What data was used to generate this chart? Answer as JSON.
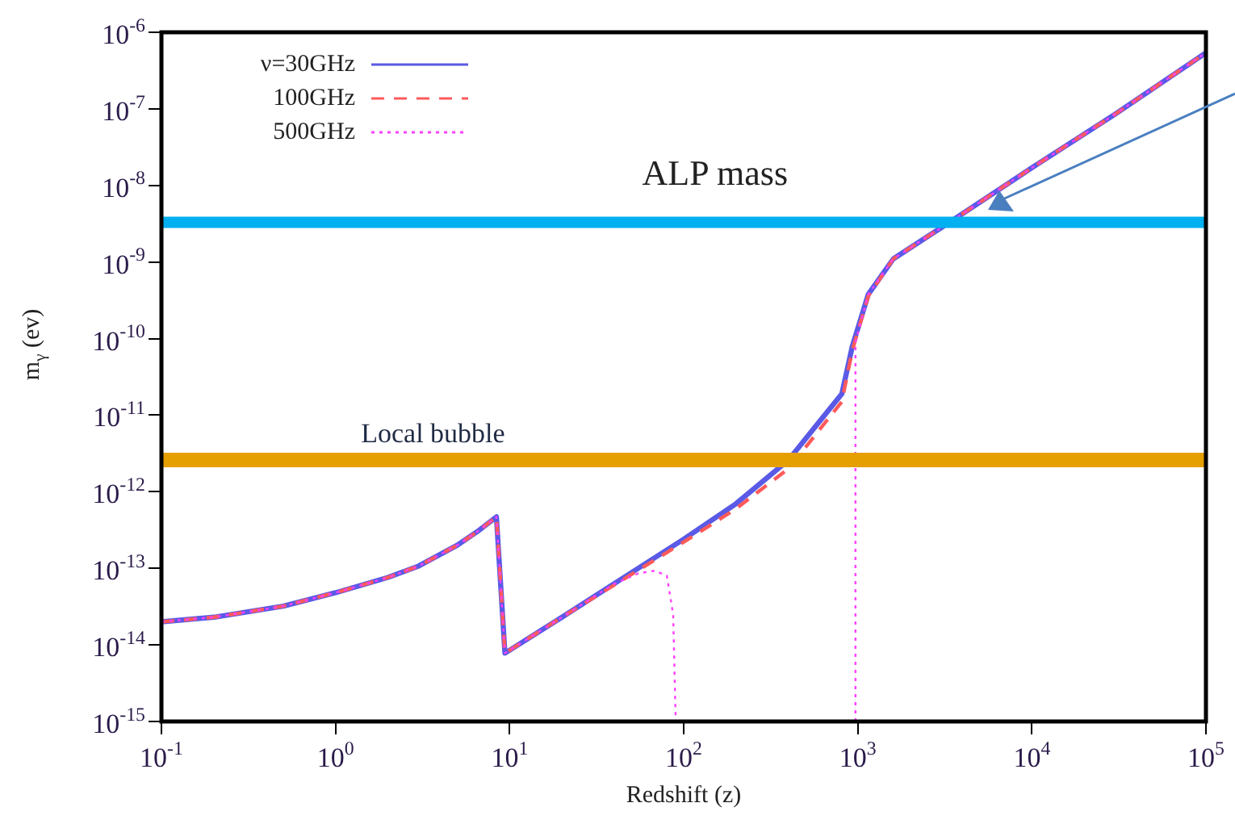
{
  "chart_data": {
    "type": "line",
    "xlabel": "Redshift (z)",
    "ylabel": "m$_{γ}$ (ev)",
    "log": "xy",
    "grid": false,
    "legend": "top left",
    "marker": "none",
    "xlim": [
      0.1,
      100000
    ],
    "ylim": [
      1e-15,
      1e-06
    ],
    "xticks": [
      {
        "value": 0.1,
        "label": "10$^{-1}$"
      },
      {
        "value": 1,
        "label": "10$^{0}$"
      },
      {
        "value": 10,
        "label": "10$^{1}$"
      },
      {
        "value": 100,
        "label": "10$^{2}$"
      },
      {
        "value": 1000,
        "label": "10$^{3}$"
      },
      {
        "value": 10000,
        "label": "10$^{4}$"
      },
      {
        "value": 100000,
        "label": "10$^{5}$"
      }
    ],
    "yticks": [
      {
        "value": 1e-15,
        "label": "10$^{-15}$"
      },
      {
        "value": 1e-14,
        "label": "10$^{-14}$"
      },
      {
        "value": 1e-13,
        "label": "10$^{-13}$"
      },
      {
        "value": 1e-12,
        "label": "10$^{-12}$"
      },
      {
        "value": 1e-11,
        "label": "10$^{-11}$"
      },
      {
        "value": 1e-10,
        "label": "10$^{-10}$"
      },
      {
        "value": 1e-09,
        "label": "10$^{-9}$"
      },
      {
        "value": 1e-08,
        "label": "10$^{-8}$"
      },
      {
        "value": 1e-07,
        "label": "10$^{-7}$"
      },
      {
        "value": 1e-06,
        "label": "10$^{-6}$"
      }
    ],
    "series": [
      {
        "name": "ν=30GHz",
        "color": "#5a5ae6",
        "line_style": "solid",
        "x": [
          0.1,
          0.2,
          0.5,
          1,
          2,
          3,
          5,
          6.5,
          8.4,
          9.4,
          20,
          42,
          100,
          200,
          400,
          810,
          930,
          1150,
          1600,
          3500,
          10000,
          30000,
          100000
        ],
        "values": [
          2e-14,
          2.3e-14,
          3.2e-14,
          4.8e-14,
          7.6e-14,
          1.07e-13,
          2e-13,
          3e-13,
          4.7e-13,
          7.8e-15,
          2.3e-14,
          6.8e-14,
          2.4e-13,
          7e-13,
          2.6e-12,
          1.9e-11,
          7.9e-11,
          3.8e-10,
          1.1e-09,
          3.5e-09,
          1.7e-08,
          8.5e-08,
          5.4e-07
        ]
      },
      {
        "name": "100GHz",
        "color": "#ff5a5a",
        "line_style": "dashed",
        "x": [
          0.1,
          0.2,
          0.5,
          1,
          2,
          3,
          5,
          6.5,
          8.4,
          9.4,
          20,
          42,
          100,
          200,
          400,
          810,
          930,
          1150,
          1600,
          3500,
          10000,
          30000,
          100000
        ],
        "values": [
          2e-14,
          2.3e-14,
          3.2e-14,
          4.8e-14,
          7.6e-14,
          1.07e-13,
          2e-13,
          3e-13,
          4.7e-13,
          7.8e-15,
          2.3e-14,
          6.5e-14,
          2.2e-13,
          6e-13,
          2e-12,
          1.5e-11,
          7e-11,
          3.6e-10,
          1.1e-09,
          3.5e-09,
          1.7e-08,
          8.5e-08,
          5.4e-07
        ]
      },
      {
        "name": "500GHz",
        "color": "#ff40ff",
        "line_style": "dotted",
        "x": [
          0.1,
          0.2,
          0.5,
          1,
          2,
          3,
          5,
          6.5,
          8.4,
          9.4,
          20,
          40,
          55,
          68,
          80,
          87,
          90,
          null,
          970,
          970,
          1150,
          1600,
          3500,
          10000,
          30000,
          100000
        ],
        "values": [
          2e-14,
          2.3e-14,
          3.2e-14,
          4.8e-14,
          7.6e-14,
          1.07e-13,
          2e-13,
          3e-13,
          4.7e-13,
          7.8e-15,
          2.3e-14,
          6.3e-14,
          8.6e-14,
          9.3e-14,
          8e-14,
          2.5e-14,
          1e-15,
          null,
          1e-15,
          9e-11,
          3.8e-10,
          1.1e-09,
          3.5e-09,
          1.7e-08,
          8.5e-08,
          5.4e-07
        ]
      }
    ],
    "ref_lines": [
      {
        "axis": "y",
        "value": 3.3e-09,
        "label": "ALP mass",
        "color": "#00b0f0"
      },
      {
        "axis": "y",
        "value": 2.6e-12,
        "label": "Local bubble",
        "color": "#e69f00"
      }
    ]
  }
}
